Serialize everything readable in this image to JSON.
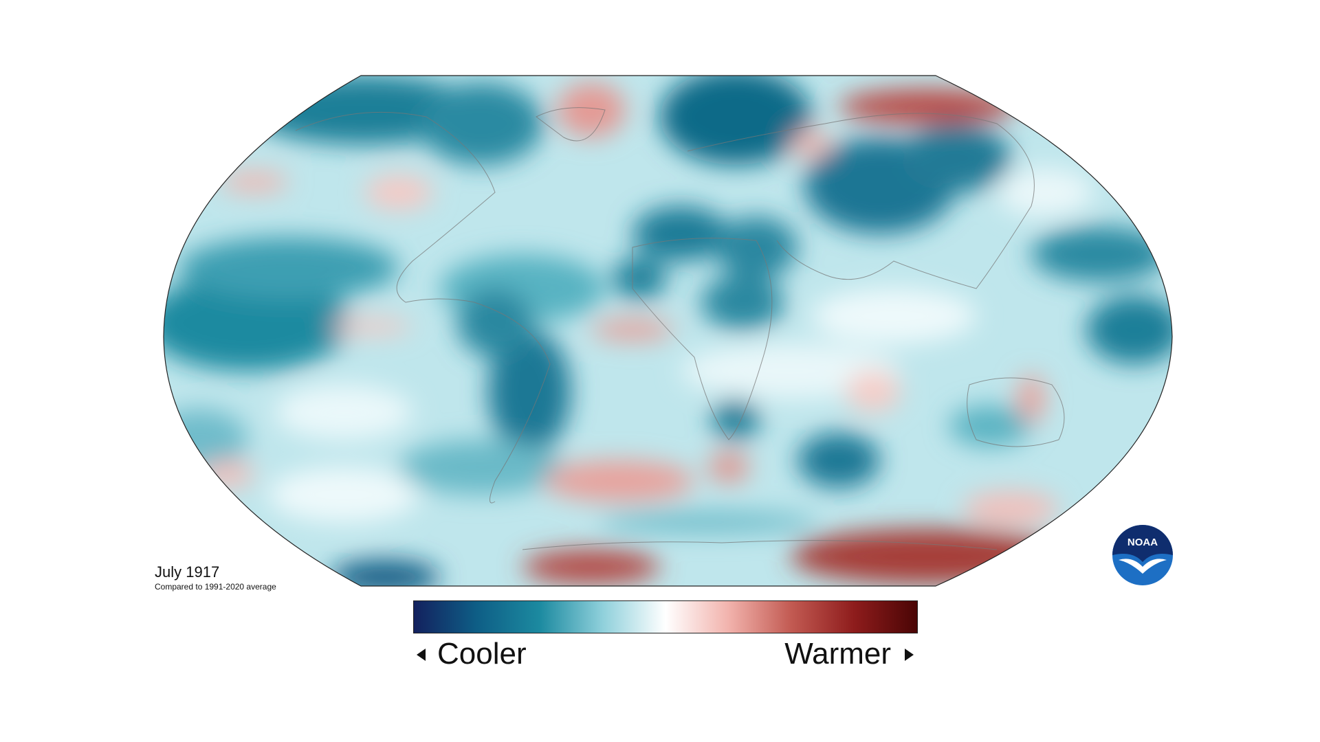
{
  "map": {
    "date": "July 1917",
    "subtitle": "Compared to 1991-2020 average",
    "legend": {
      "cool_label": "Cooler",
      "warm_label": "Warmer",
      "colors": [
        "#13215e",
        "#0e5e86",
        "#1c8aa0",
        "#8fd0db",
        "#ffffff",
        "#f2b3ad",
        "#c25a52",
        "#8e1c1c",
        "#4a0505"
      ]
    },
    "logo_text": "NOAA",
    "icons": {
      "logo": "noaa-logo-icon",
      "left_arrow": "triangle-left-icon",
      "right_arrow": "triangle-right-icon"
    }
  }
}
